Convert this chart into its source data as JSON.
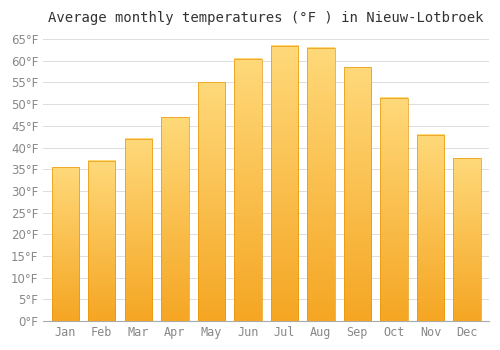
{
  "title": "Average monthly temperatures (°F ) in Nieuw-Lotbroek",
  "months": [
    "Jan",
    "Feb",
    "Mar",
    "Apr",
    "May",
    "Jun",
    "Jul",
    "Aug",
    "Sep",
    "Oct",
    "Nov",
    "Dec"
  ],
  "values": [
    35.5,
    37,
    42,
    47,
    55,
    60.5,
    63.5,
    63,
    58.5,
    51.5,
    43,
    37.5
  ],
  "bar_color_bottom": "#F5A623",
  "bar_color_top": "#FFD97A",
  "bar_edge_color": "#E8960A",
  "background_color": "#FFFFFF",
  "plot_bg_color": "#FFFFFF",
  "grid_color": "#DDDDDD",
  "ylim": [
    0,
    67
  ],
  "yticks": [
    0,
    5,
    10,
    15,
    20,
    25,
    30,
    35,
    40,
    45,
    50,
    55,
    60,
    65
  ],
  "title_fontsize": 10,
  "tick_fontsize": 8.5,
  "figsize": [
    5.0,
    3.5
  ],
  "dpi": 100
}
